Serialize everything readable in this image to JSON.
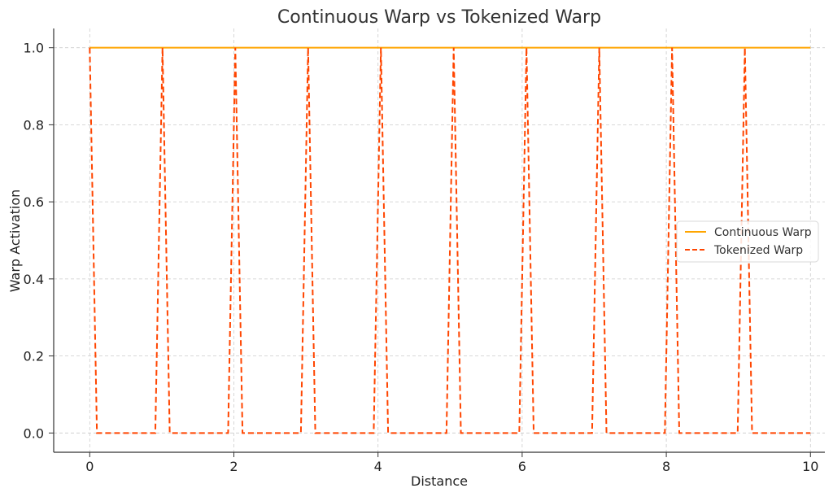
{
  "chart_data": {
    "type": "line",
    "title": "Continuous Warp vs Tokenized Warp",
    "xlabel": "Distance",
    "ylabel": "Warp Activation",
    "xlim": [
      -0.5,
      10.2
    ],
    "ylim": [
      -0.05,
      1.05
    ],
    "xticks": [
      0,
      2,
      4,
      6,
      8,
      10
    ],
    "xtick_labels": [
      "0",
      "2",
      "4",
      "6",
      "8",
      "10"
    ],
    "yticks": [
      0.0,
      0.2,
      0.4,
      0.6,
      0.8,
      1.0
    ],
    "ytick_labels": [
      "0.0",
      "0.2",
      "0.4",
      "0.6",
      "0.8",
      "1.0"
    ],
    "grid": true,
    "legend_position": "center-right",
    "series": [
      {
        "name": "Continuous Warp",
        "style": "solid",
        "color": "#FFA500",
        "x": [
          0,
          10
        ],
        "y": [
          1,
          1
        ]
      },
      {
        "name": "Tokenized Warp",
        "style": "dashed",
        "color": "#FF4500",
        "x": [
          0.0,
          0.1,
          0.91,
          1.01,
          1.11,
          1.92,
          2.02,
          2.12,
          2.93,
          3.03,
          3.13,
          3.94,
          4.04,
          4.14,
          4.95,
          5.05,
          5.15,
          5.96,
          6.06,
          6.16,
          6.97,
          7.07,
          7.17,
          7.98,
          8.08,
          8.18,
          8.99,
          9.09,
          9.19,
          10.0
        ],
        "y": [
          1,
          0,
          0,
          1,
          0,
          0,
          1,
          0,
          0,
          1,
          0,
          0,
          1,
          0,
          0,
          1,
          0,
          0,
          1,
          0,
          0,
          1,
          0,
          0,
          1,
          0,
          0,
          1,
          0,
          0
        ]
      }
    ]
  }
}
